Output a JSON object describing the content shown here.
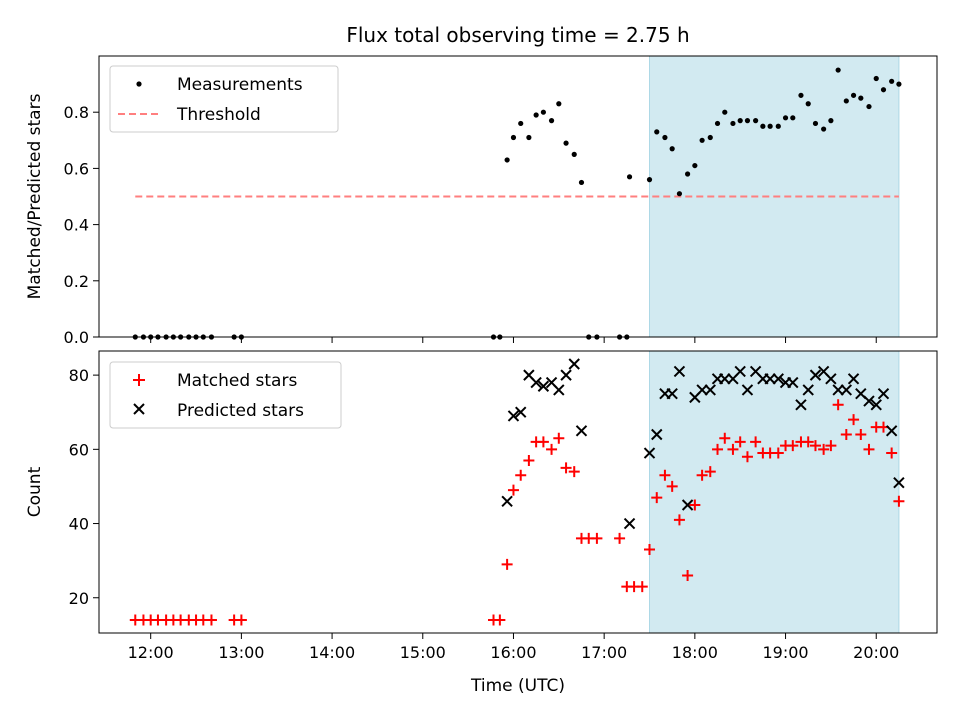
{
  "chart_data": [
    {
      "type": "scatter",
      "title": "Flux total observing time = 2.75 h",
      "xlabel": "",
      "ylabel": "Matched/Predicted stars",
      "xlim": [
        11.43,
        20.67
      ],
      "ylim": [
        0.0,
        1.0
      ],
      "yticks": [
        0.0,
        0.2,
        0.4,
        0.6,
        0.8
      ],
      "ytick_labels": [
        "0.0",
        "0.2",
        "0.4",
        "0.6",
        "0.8"
      ],
      "xticks": [
        12,
        13,
        14,
        15,
        16,
        17,
        18,
        19,
        20
      ],
      "legend": "top-left",
      "shaded_interval": {
        "x0": 17.5,
        "x1": 20.25,
        "color": "#add8e6"
      },
      "threshold": {
        "name": "Threshold",
        "value": 0.5,
        "x0": 11.83,
        "x1": 20.25,
        "color": "#ff7f7f",
        "style": "dashed"
      },
      "series": [
        {
          "name": "Measurements",
          "marker": "dot",
          "color": "#000000",
          "points": [
            [
              11.83,
              0.0
            ],
            [
              11.92,
              0.0
            ],
            [
              12.0,
              0.0
            ],
            [
              12.08,
              0.0
            ],
            [
              12.17,
              0.0
            ],
            [
              12.25,
              0.0
            ],
            [
              12.33,
              0.0
            ],
            [
              12.42,
              0.0
            ],
            [
              12.5,
              0.0
            ],
            [
              12.58,
              0.0
            ],
            [
              12.67,
              0.0
            ],
            [
              12.92,
              0.0
            ],
            [
              13.0,
              0.0
            ],
            [
              15.78,
              0.0
            ],
            [
              15.85,
              0.0
            ],
            [
              15.93,
              0.63
            ],
            [
              16.0,
              0.71
            ],
            [
              16.08,
              0.76
            ],
            [
              16.17,
              0.71
            ],
            [
              16.25,
              0.79
            ],
            [
              16.33,
              0.8
            ],
            [
              16.42,
              0.77
            ],
            [
              16.5,
              0.83
            ],
            [
              16.58,
              0.69
            ],
            [
              16.67,
              0.65
            ],
            [
              16.75,
              0.55
            ],
            [
              16.83,
              0.0
            ],
            [
              16.92,
              0.0
            ],
            [
              17.17,
              0.0
            ],
            [
              17.25,
              0.0
            ],
            [
              17.28,
              0.57
            ],
            [
              17.5,
              0.56
            ],
            [
              17.58,
              0.73
            ],
            [
              17.67,
              0.71
            ],
            [
              17.75,
              0.67
            ],
            [
              17.83,
              0.51
            ],
            [
              17.92,
              0.58
            ],
            [
              18.0,
              0.61
            ],
            [
              18.08,
              0.7
            ],
            [
              18.17,
              0.71
            ],
            [
              18.25,
              0.76
            ],
            [
              18.33,
              0.8
            ],
            [
              18.42,
              0.76
            ],
            [
              18.5,
              0.77
            ],
            [
              18.58,
              0.77
            ],
            [
              18.67,
              0.77
            ],
            [
              18.75,
              0.75
            ],
            [
              18.83,
              0.75
            ],
            [
              18.92,
              0.75
            ],
            [
              19.0,
              0.78
            ],
            [
              19.08,
              0.78
            ],
            [
              19.17,
              0.86
            ],
            [
              19.25,
              0.83
            ],
            [
              19.33,
              0.76
            ],
            [
              19.42,
              0.74
            ],
            [
              19.5,
              0.77
            ],
            [
              19.58,
              0.95
            ],
            [
              19.67,
              0.84
            ],
            [
              19.75,
              0.86
            ],
            [
              19.83,
              0.85
            ],
            [
              19.92,
              0.82
            ],
            [
              20.0,
              0.92
            ],
            [
              20.08,
              0.88
            ],
            [
              20.17,
              0.91
            ],
            [
              20.25,
              0.9
            ]
          ]
        }
      ]
    },
    {
      "type": "scatter",
      "title": "",
      "xlabel": "Time (UTC)",
      "ylabel": "Count",
      "xlim": [
        11.43,
        20.67
      ],
      "ylim": [
        10.5,
        86.5
      ],
      "yticks": [
        20,
        40,
        60,
        80
      ],
      "ytick_labels": [
        "20",
        "40",
        "60",
        "80"
      ],
      "xticks": [
        12,
        13,
        14,
        15,
        16,
        17,
        18,
        19,
        20
      ],
      "xtick_labels": [
        "12:00",
        "13:00",
        "14:00",
        "15:00",
        "16:00",
        "17:00",
        "18:00",
        "19:00",
        "20:00"
      ],
      "legend": "top-left",
      "shaded_interval": {
        "x0": 17.5,
        "x1": 20.25,
        "color": "#add8e6"
      },
      "series": [
        {
          "name": "Matched stars",
          "marker": "plus",
          "color": "#ff0000",
          "points": [
            [
              11.83,
              14
            ],
            [
              11.92,
              14
            ],
            [
              12.0,
              14
            ],
            [
              12.08,
              14
            ],
            [
              12.17,
              14
            ],
            [
              12.25,
              14
            ],
            [
              12.33,
              14
            ],
            [
              12.42,
              14
            ],
            [
              12.5,
              14
            ],
            [
              12.58,
              14
            ],
            [
              12.67,
              14
            ],
            [
              12.92,
              14
            ],
            [
              13.0,
              14
            ],
            [
              15.78,
              14
            ],
            [
              15.85,
              14
            ],
            [
              15.93,
              29
            ],
            [
              16.0,
              49
            ],
            [
              16.08,
              53
            ],
            [
              16.17,
              57
            ],
            [
              16.25,
              62
            ],
            [
              16.33,
              62
            ],
            [
              16.42,
              60
            ],
            [
              16.5,
              63
            ],
            [
              16.58,
              55
            ],
            [
              16.67,
              54
            ],
            [
              16.75,
              36
            ],
            [
              16.83,
              36
            ],
            [
              16.92,
              36
            ],
            [
              17.17,
              36
            ],
            [
              17.25,
              23
            ],
            [
              17.33,
              23
            ],
            [
              17.42,
              23
            ],
            [
              17.5,
              33
            ],
            [
              17.58,
              47
            ],
            [
              17.67,
              53
            ],
            [
              17.75,
              50
            ],
            [
              17.83,
              41
            ],
            [
              17.92,
              26
            ],
            [
              18.0,
              45
            ],
            [
              18.08,
              53
            ],
            [
              18.17,
              54
            ],
            [
              18.25,
              60
            ],
            [
              18.33,
              63
            ],
            [
              18.42,
              60
            ],
            [
              18.5,
              62
            ],
            [
              18.58,
              58
            ],
            [
              18.67,
              62
            ],
            [
              18.75,
              59
            ],
            [
              18.83,
              59
            ],
            [
              18.92,
              59
            ],
            [
              19.0,
              61
            ],
            [
              19.08,
              61
            ],
            [
              19.17,
              62
            ],
            [
              19.25,
              62
            ],
            [
              19.33,
              61
            ],
            [
              19.42,
              60
            ],
            [
              19.5,
              61
            ],
            [
              19.58,
              72
            ],
            [
              19.67,
              64
            ],
            [
              19.75,
              68
            ],
            [
              19.83,
              64
            ],
            [
              19.92,
              60
            ],
            [
              20.0,
              66
            ],
            [
              20.08,
              66
            ],
            [
              20.17,
              59
            ],
            [
              20.25,
              46
            ]
          ]
        },
        {
          "name": "Predicted stars",
          "marker": "x",
          "color": "#000000",
          "points": [
            [
              15.93,
              46
            ],
            [
              16.0,
              69
            ],
            [
              16.08,
              70
            ],
            [
              16.17,
              80
            ],
            [
              16.25,
              78
            ],
            [
              16.33,
              77
            ],
            [
              16.42,
              78
            ],
            [
              16.5,
              76
            ],
            [
              16.58,
              80
            ],
            [
              16.67,
              83
            ],
            [
              16.75,
              65
            ],
            [
              17.28,
              40
            ],
            [
              17.5,
              59
            ],
            [
              17.58,
              64
            ],
            [
              17.67,
              75
            ],
            [
              17.75,
              75
            ],
            [
              17.83,
              81
            ],
            [
              17.92,
              45
            ],
            [
              18.0,
              74
            ],
            [
              18.08,
              76
            ],
            [
              18.17,
              76
            ],
            [
              18.25,
              79
            ],
            [
              18.33,
              79
            ],
            [
              18.42,
              79
            ],
            [
              18.5,
              81
            ],
            [
              18.58,
              76
            ],
            [
              18.67,
              81
            ],
            [
              18.75,
              79
            ],
            [
              18.83,
              79
            ],
            [
              18.92,
              79
            ],
            [
              19.0,
              78
            ],
            [
              19.08,
              78
            ],
            [
              19.17,
              72
            ],
            [
              19.25,
              76
            ],
            [
              19.33,
              80
            ],
            [
              19.42,
              81
            ],
            [
              19.5,
              79
            ],
            [
              19.58,
              76
            ],
            [
              19.67,
              76
            ],
            [
              19.75,
              79
            ],
            [
              19.83,
              75
            ],
            [
              19.92,
              73
            ],
            [
              20.0,
              72
            ],
            [
              20.08,
              75
            ],
            [
              20.17,
              65
            ],
            [
              20.25,
              51
            ]
          ]
        }
      ]
    }
  ]
}
